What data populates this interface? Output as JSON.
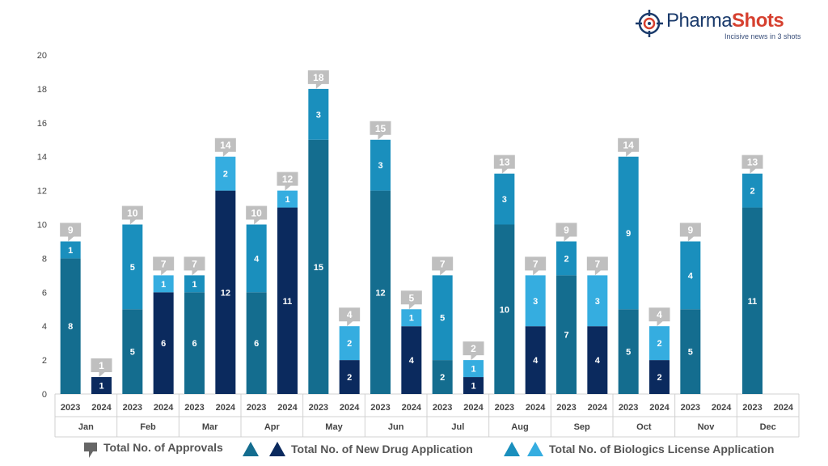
{
  "brand": {
    "name_part1": "Pharma",
    "name_part2": "Shots",
    "tagline": "Incisive news in 3 shots",
    "colors": {
      "dark": "#1a3a6b",
      "accent": "#d6402f"
    }
  },
  "chart_data": {
    "type": "bar",
    "stacked": true,
    "ylim": [
      0,
      20
    ],
    "yticks": [
      0,
      2,
      4,
      6,
      8,
      10,
      12,
      14,
      16,
      18,
      20
    ],
    "grid": false,
    "legend_position": "bottom",
    "months": [
      "Jan",
      "Feb",
      "Mar",
      "Apr",
      "May",
      "Jun",
      "Jul",
      "Aug",
      "Sep",
      "Oct",
      "Nov",
      "Dec"
    ],
    "years": [
      "2023",
      "2024"
    ],
    "legend": {
      "total": "Total No. of Approvals",
      "nda": "Total No. of New Drug Application",
      "bla": "Total No. of Biologics License Application"
    },
    "colors": {
      "nda_2023": "#146d8f",
      "nda_2024": "#0b2a5e",
      "bla_2023": "#1a8fbd",
      "bla_2024": "#35ade0",
      "total_callout": "#bfbfbf"
    },
    "series": [
      {
        "key": "nda",
        "name": "Total No. of New Drug Application",
        "values": [
          [
            8,
            1
          ],
          [
            5,
            6
          ],
          [
            6,
            12
          ],
          [
            6,
            11
          ],
          [
            15,
            2
          ],
          [
            12,
            4
          ],
          [
            2,
            1
          ],
          [
            10,
            4
          ],
          [
            7,
            4
          ],
          [
            5,
            2
          ],
          [
            5,
            0
          ],
          [
            11,
            0
          ]
        ]
      },
      {
        "key": "bla",
        "name": "Total No. of Biologics License Application",
        "values": [
          [
            1,
            0
          ],
          [
            5,
            1
          ],
          [
            1,
            2
          ],
          [
            4,
            1
          ],
          [
            3,
            2
          ],
          [
            3,
            1
          ],
          [
            5,
            1
          ],
          [
            3,
            3
          ],
          [
            2,
            3
          ],
          [
            9,
            2
          ],
          [
            4,
            0
          ],
          [
            2,
            0
          ]
        ]
      }
    ],
    "totals": [
      [
        9,
        1
      ],
      [
        10,
        7
      ],
      [
        7,
        14
      ],
      [
        10,
        12
      ],
      [
        18,
        4
      ],
      [
        15,
        5
      ],
      [
        7,
        2
      ],
      [
        13,
        7
      ],
      [
        9,
        7
      ],
      [
        14,
        4
      ],
      [
        9,
        null
      ],
      [
        13,
        null
      ]
    ]
  }
}
